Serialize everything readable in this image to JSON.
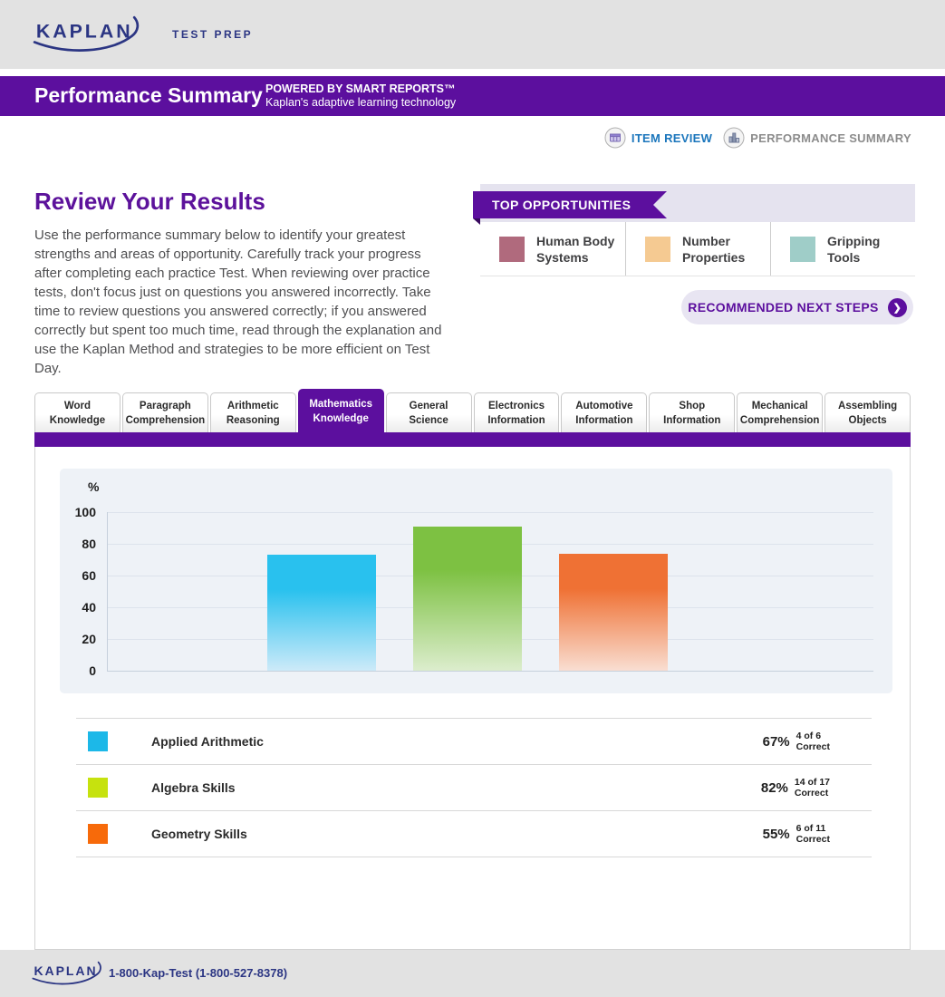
{
  "header": {
    "logo_text": "KAPLAN",
    "logo_tagline": "TEST PREP"
  },
  "banner": {
    "title": "Performance Summary",
    "powered_by": "POWERED BY SMART REPORTS™",
    "powered_by_sub": "Kaplan's adaptive learning technology",
    "bg_color": "#5c0f9e"
  },
  "nav": {
    "item_review": "ITEM REVIEW",
    "performance_summary": "PERFORMANCE SUMMARY"
  },
  "intro": {
    "heading": "Review Your Results",
    "body": "Use the performance summary below to identify your greatest strengths and areas of opportunity. Carefully track your progress after completing each practice Test. When reviewing over practice tests, don't focus just on questions you answered incorrectly. Take time to review questions you answered correctly; if you answered correctly but spent too much time, read through the explanation and use the Kaplan Method and strategies to be more efficient on Test Day."
  },
  "top_opportunities": {
    "title": "TOP OPPORTUNITIES",
    "items": [
      {
        "label": "Human Body Systems",
        "color": "#b06a7d"
      },
      {
        "label": "Number Properties",
        "color": "#f5ca92"
      },
      {
        "label": "Gripping Tools",
        "color": "#9fcdc8"
      }
    ]
  },
  "next_steps": {
    "label": "RECOMMENDED NEXT STEPS",
    "arrow": "❯"
  },
  "tabs": [
    {
      "line1": "Word",
      "line2": "Knowledge",
      "active": false
    },
    {
      "line1": "Paragraph",
      "line2": "Comprehension",
      "active": false
    },
    {
      "line1": "Arithmetic",
      "line2": "Reasoning",
      "active": false
    },
    {
      "line1": "Mathematics",
      "line2": "Knowledge",
      "active": true
    },
    {
      "line1": "General",
      "line2": "Science",
      "active": false
    },
    {
      "line1": "Electronics",
      "line2": "Information",
      "active": false
    },
    {
      "line1": "Automotive",
      "line2": "Information",
      "active": false
    },
    {
      "line1": "Shop",
      "line2": "Information",
      "active": false
    },
    {
      "line1": "Mechanical",
      "line2": "Comprehension",
      "active": false
    },
    {
      "line1": "Assembling",
      "line2": "Objects",
      "active": false
    }
  ],
  "chart_data": {
    "type": "bar",
    "title": "Mathematics Knowledge skill performance",
    "ylabel": "%",
    "xlabel": "",
    "ylim": [
      0,
      100
    ],
    "yticks": [
      0,
      20,
      40,
      60,
      80,
      100
    ],
    "grid": true,
    "legend_position": "below",
    "categories": [
      "Applied Arithmetic",
      "Algebra Skills",
      "Geometry Skills"
    ],
    "values_pct": [
      67,
      82,
      55
    ],
    "bar_display_heights_pct": [
      73,
      91,
      74
    ],
    "bar_colors_top": [
      "#29c1ee",
      "#7dc142",
      "#ef7134"
    ],
    "bar_colors_bottom": [
      "#cdeaf9",
      "#dcedcd",
      "#f9ded2"
    ],
    "legend": [
      {
        "label": "Applied Arithmetic",
        "percent": "67%",
        "fraction": "4 of 6",
        "word": "Correct",
        "color": "#1cb8e8"
      },
      {
        "label": "Algebra Skills",
        "percent": "82%",
        "fraction": "14 of 17",
        "word": "Correct",
        "color": "#c6e20e"
      },
      {
        "label": "Geometry Skills",
        "percent": "55%",
        "fraction": "6 of 11",
        "word": "Correct",
        "color": "#f76a0a"
      }
    ]
  },
  "footer": {
    "phone": "1-800-Kap-Test (1-800-527-8378)"
  }
}
